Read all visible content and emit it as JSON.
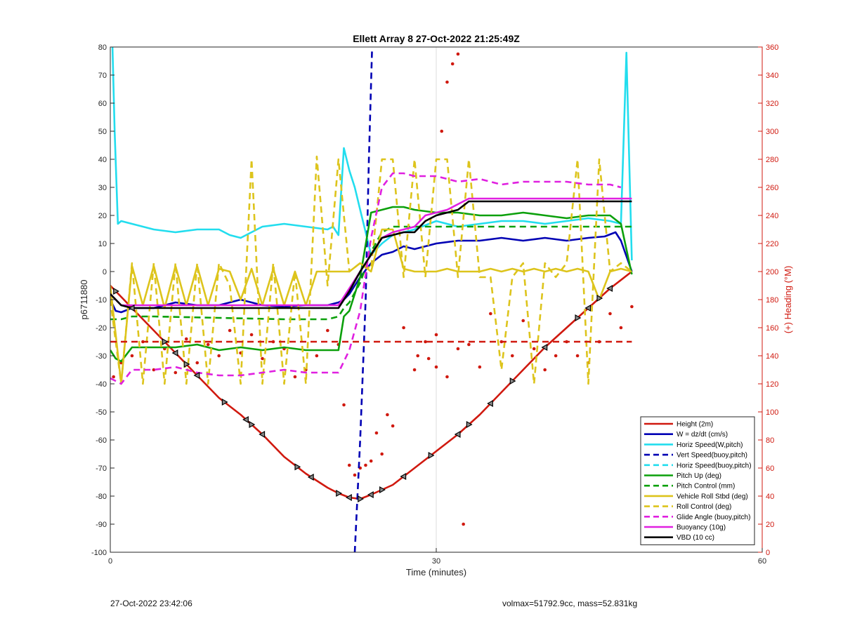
{
  "chart_data": {
    "type": "line",
    "title": "Ellett Array 8 27-Oct-2022 21:25:49Z",
    "xlabel": "Time (minutes)",
    "ylabel": "p6711880",
    "y2label": "(+) Heading (°M)",
    "xlim": [
      0,
      60
    ],
    "ylim": [
      -100,
      80
    ],
    "y2lim": [
      0,
      360
    ],
    "xticks": [
      0,
      30,
      60
    ],
    "yticks": [
      -100,
      -90,
      -80,
      -70,
      -60,
      -50,
      -40,
      -30,
      -20,
      -10,
      0,
      10,
      20,
      30,
      40,
      50,
      60,
      70,
      80
    ],
    "y2ticks": [
      0,
      20,
      40,
      60,
      80,
      100,
      120,
      140,
      160,
      180,
      200,
      220,
      240,
      260,
      280,
      300,
      320,
      340,
      360
    ],
    "grid": true,
    "legend_position": "bottom-right",
    "footer_left": "27-Oct-2022 23:42:06",
    "footer_right": "volmax=51792.9cc, mass=52.831kg",
    "series": [
      {
        "name": "Height (2m)",
        "color": "#d0190f",
        "dash": "solid",
        "x": [
          0,
          2,
          4,
          6,
          8,
          10,
          12,
          14,
          16,
          18,
          20,
          21,
          22,
          23,
          24,
          26,
          28,
          30,
          32,
          34,
          36,
          38,
          40,
          42,
          44,
          46,
          48
        ],
        "y": [
          -5,
          -13,
          -21,
          -29,
          -37,
          -45,
          -51,
          -58,
          -66,
          -72,
          -77,
          -79,
          -80.5,
          -81,
          -79.5,
          -76,
          -70,
          -64,
          -58,
          -51,
          -43,
          -35,
          -27,
          -20,
          -13,
          -6,
          0
        ],
        "markers": [
          0.5,
          2,
          5,
          6,
          7,
          8,
          10.5,
          12.5,
          13,
          14,
          17.2,
          18.5,
          21,
          22,
          23,
          24,
          25,
          27,
          29.5,
          32,
          33,
          35,
          37,
          40,
          43,
          44,
          45,
          46
        ]
      },
      {
        "name": "W = dz/dt (cm/s)",
        "color": "#0000b4",
        "dash": "solid",
        "x": [
          0,
          0.5,
          1,
          2,
          4,
          6,
          8,
          10,
          12,
          14,
          16,
          18,
          20,
          21,
          21.5,
          22,
          23,
          24,
          25,
          26,
          27,
          28,
          30,
          32,
          34,
          36,
          38,
          40,
          42,
          44,
          45.5,
          46.5,
          47,
          48
        ],
        "y": [
          -10,
          -14,
          -14.5,
          -13,
          -13,
          -11,
          -12,
          -12,
          -10,
          -12,
          -12.5,
          -12,
          -12,
          -11,
          -10,
          -8,
          -2,
          3,
          6,
          7,
          9,
          8,
          10,
          11,
          11,
          12,
          11,
          12,
          11,
          12,
          12.5,
          14,
          11,
          0
        ]
      },
      {
        "name": "Horiz Speed(W,pitch)",
        "color": "#22ddee",
        "dash": "solid",
        "x": [
          0.2,
          0.4,
          0.7,
          1,
          2,
          4,
          6,
          8,
          10,
          11,
          12,
          14,
          16,
          18,
          20,
          20.5,
          21,
          21.5,
          22,
          22.5,
          23,
          23.5,
          24,
          25,
          26,
          27,
          28,
          30,
          32,
          34,
          36,
          38,
          40,
          42,
          44,
          46,
          47,
          47.5,
          48
        ],
        "y": [
          80,
          50,
          17,
          18,
          17,
          15,
          14,
          15,
          15,
          13,
          12,
          16,
          17,
          16,
          15,
          16,
          13,
          44,
          36,
          30,
          22,
          14,
          6,
          10,
          13,
          14,
          15,
          18,
          16,
          17,
          18,
          18,
          17,
          18,
          19,
          18,
          17,
          78,
          4
        ]
      },
      {
        "name": "Vert Speed(buoy,pitch)",
        "color": "#0000b4",
        "dash": "dashed",
        "x": [
          22.5,
          23,
          23.5,
          23.8,
          24.1
        ],
        "y": [
          -100,
          -60,
          -10,
          40,
          80
        ]
      },
      {
        "name": "Horiz Speed(buoy,pitch)",
        "color": "#22ddee",
        "dash": "dashed",
        "x": [],
        "y": []
      },
      {
        "name": "Pitch Up (deg)",
        "color": "#0ba00b",
        "dash": "solid",
        "x": [
          0,
          0.5,
          1,
          2,
          4,
          6,
          8,
          10,
          12,
          14,
          16,
          18,
          20,
          21,
          21.5,
          22,
          23,
          24,
          25,
          26,
          27,
          28,
          30,
          32,
          34,
          36,
          38,
          40,
          42,
          44,
          46,
          47,
          48
        ],
        "y": [
          -28,
          -31,
          -32,
          -27,
          -27,
          -27,
          -26,
          -28,
          -27,
          -28,
          -27,
          -28,
          -28,
          -28,
          -16,
          -14,
          -2,
          21,
          22,
          23,
          23,
          22,
          21,
          21,
          20,
          20,
          21,
          20,
          19,
          20,
          20,
          17,
          -1
        ]
      },
      {
        "name": "Pitch Control (mm)",
        "color": "#0ba00b",
        "dash": "dashed",
        "x": [
          0,
          1,
          2,
          4,
          10,
          16,
          20,
          21,
          21.5,
          22,
          23,
          24,
          25,
          26,
          28,
          48
        ],
        "y": [
          -17,
          -17,
          -16,
          -16,
          -16.5,
          -17,
          -17,
          -16,
          -13,
          -11,
          -4,
          7,
          14,
          16,
          16,
          16
        ]
      },
      {
        "name": "Vehicle Roll Stbd (deg)",
        "color": "#ddc41c",
        "dash": "solid",
        "x": [
          0,
          1,
          2,
          3,
          4,
          5,
          6,
          7,
          8,
          9,
          10,
          11,
          12,
          13,
          14,
          15,
          16,
          17,
          18,
          19,
          20,
          21,
          22,
          23,
          24,
          25,
          26,
          27,
          28,
          29,
          30,
          31,
          32,
          33,
          34,
          35,
          36,
          37,
          38,
          39,
          40,
          41,
          42,
          43,
          44,
          45,
          46,
          47,
          48
        ],
        "y": [
          -5,
          -40,
          2,
          -12,
          2,
          -13,
          2,
          -12,
          2,
          -12,
          1,
          0,
          -10,
          1,
          -12,
          1,
          -12,
          0,
          -12,
          0,
          0,
          0,
          0,
          3,
          0,
          15,
          15,
          1,
          0,
          0,
          0,
          1,
          0,
          0,
          0,
          1,
          0,
          1,
          0,
          1,
          0,
          1,
          0,
          1,
          0,
          -10,
          0,
          1,
          0
        ]
      },
      {
        "name": "Roll Control (deg)",
        "color": "#ddc41c",
        "dash": "dashed",
        "x": [
          0,
          1,
          2,
          3,
          4,
          5,
          6,
          7,
          8,
          9,
          10,
          11,
          12,
          13,
          14,
          15,
          16,
          17,
          18,
          19,
          20,
          21,
          22,
          23,
          24,
          25,
          26,
          27,
          28,
          29,
          30,
          31,
          32,
          33,
          34,
          35,
          36,
          37,
          38,
          39,
          40,
          41,
          42,
          43,
          44,
          45,
          46,
          47,
          48
        ],
        "y": [
          -10,
          -40,
          3,
          -40,
          3,
          -40,
          3,
          -40,
          3,
          -40,
          3,
          -5,
          -40,
          40,
          -40,
          3,
          -40,
          0,
          -40,
          41,
          -5,
          40,
          0,
          3,
          1,
          40,
          40,
          -2,
          40,
          -2,
          40,
          40,
          -2,
          40,
          -2,
          -2,
          -35,
          -2,
          3,
          -40,
          3,
          -2,
          3,
          40,
          -40,
          40,
          0,
          3,
          0
        ]
      },
      {
        "name": "Glide Angle (buoy,pitch)",
        "color": "#e020e0",
        "dash": "dashed",
        "x": [
          0,
          1,
          2,
          4,
          6,
          8,
          10,
          12,
          14,
          16,
          18,
          20,
          21,
          22,
          23,
          24,
          25,
          26,
          27,
          28,
          30,
          32,
          34,
          36,
          38,
          40,
          42,
          44,
          46,
          47
        ],
        "y": [
          -38,
          -40,
          -35,
          -35,
          -34,
          -36,
          -37,
          -37,
          -36,
          -35,
          -36,
          -36,
          -36,
          -28,
          -14,
          12,
          30,
          35,
          35,
          34,
          34,
          32,
          33,
          31,
          32,
          32,
          32,
          31,
          31,
          30
        ]
      },
      {
        "name": "Buoyancy (10g)",
        "color": "#e020e0",
        "dash": "solid",
        "x": [
          0,
          1,
          2,
          4,
          8,
          12,
          16,
          20,
          21,
          22,
          23,
          24,
          25,
          26,
          27,
          28,
          29,
          30,
          31,
          32,
          33,
          34,
          38,
          42,
          46,
          48
        ],
        "y": [
          -8,
          -12,
          -12,
          -12,
          -12,
          -12,
          -12,
          -12,
          -12,
          -6,
          0,
          6,
          12,
          14,
          15,
          16,
          20,
          21,
          22,
          24,
          26,
          26,
          26,
          26,
          26,
          26
        ]
      },
      {
        "name": "VBD (10 cc)",
        "color": "#000000",
        "dash": "solid",
        "x": [
          0,
          1,
          2,
          4,
          8,
          12,
          16,
          20,
          21,
          22,
          23,
          24,
          25,
          26,
          27,
          28,
          29,
          30,
          31,
          32,
          33,
          34,
          38,
          42,
          46,
          48
        ],
        "y": [
          -8,
          -12,
          -13,
          -13,
          -13,
          -13,
          -13,
          -13,
          -13,
          -7,
          0,
          6,
          12,
          13,
          14,
          14,
          18,
          20,
          21,
          22,
          25,
          25,
          25,
          25,
          25,
          25
        ]
      },
      {
        "name": "",
        "color": "#d0190f",
        "dash": "dashed",
        "axis": "right",
        "x": [
          0,
          48
        ],
        "y": [
          150,
          150
        ]
      }
    ],
    "heading_points": {
      "axis": "right",
      "color": "#d0190f",
      "x": [
        0.3,
        1,
        2,
        3,
        4,
        5,
        6,
        7,
        8,
        9,
        10,
        11,
        12,
        13,
        14,
        15,
        16,
        17,
        18,
        19,
        20,
        21,
        22,
        23,
        24,
        25,
        26,
        27,
        28,
        29,
        30,
        31,
        32,
        33,
        34,
        35,
        36,
        37,
        38,
        39,
        40,
        41,
        42,
        43,
        44,
        45,
        46,
        47,
        48,
        21.5,
        22.5,
        23.5,
        24.5,
        25.5,
        30.5,
        31,
        31.5,
        32,
        28.3,
        29.3,
        30,
        32.5
      ],
      "y": [
        125,
        135,
        140,
        150,
        130,
        145,
        128,
        152,
        135,
        148,
        140,
        158,
        142,
        155,
        138,
        150,
        145,
        125,
        130,
        140,
        158,
        148,
        62,
        60,
        65,
        70,
        90,
        160,
        130,
        150,
        132,
        125,
        145,
        148,
        132,
        170,
        150,
        140,
        165,
        145,
        130,
        140,
        150,
        140,
        135,
        150,
        170,
        160,
        175,
        105,
        55,
        62,
        85,
        98,
        300,
        335,
        348,
        355,
        140,
        138,
        155,
        20
      ]
    }
  }
}
